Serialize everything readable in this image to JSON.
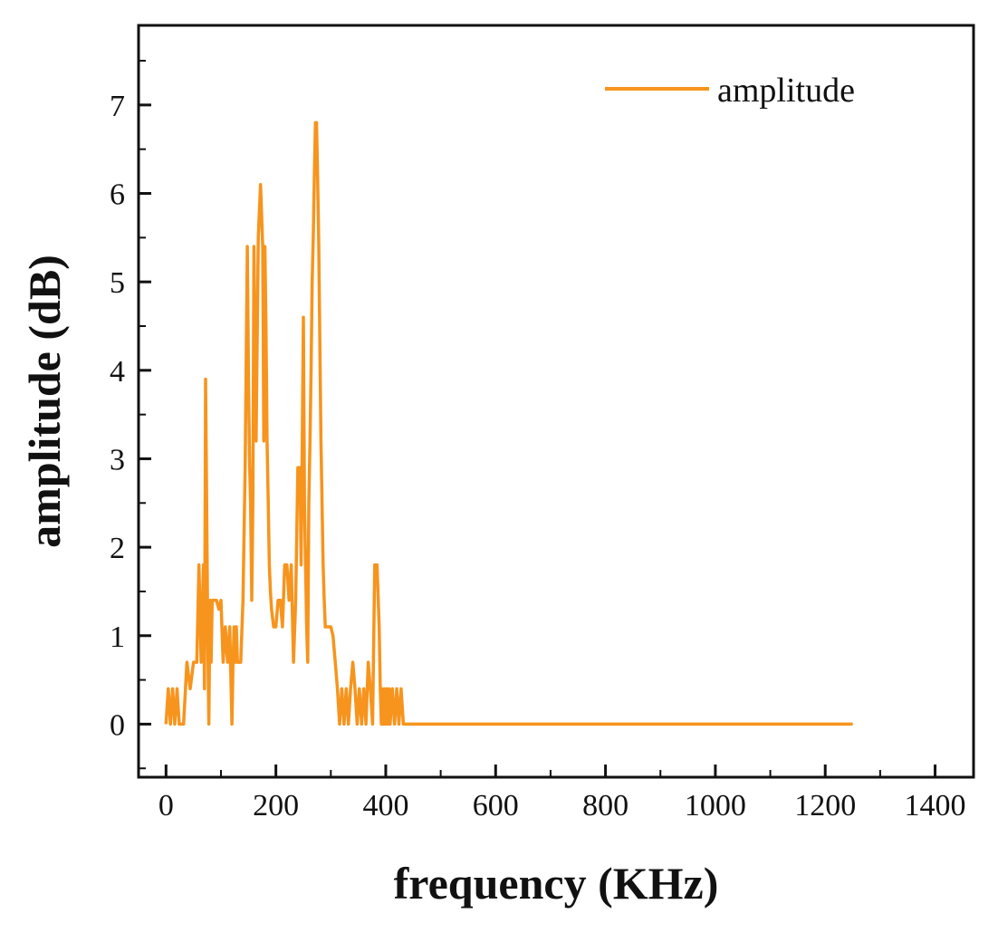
{
  "chart_data": {
    "type": "line",
    "title": "",
    "xlabel": "frequency (KHz)",
    "ylabel": "amplitude (dB)",
    "xlim": [
      -50,
      1470
    ],
    "ylim": [
      -0.6,
      7.9
    ],
    "xticks": [
      0,
      200,
      400,
      600,
      800,
      1000,
      1200,
      1400
    ],
    "xtick_labels": [
      "0",
      "200",
      "400",
      "600",
      "800",
      "1000",
      "1200",
      "1400"
    ],
    "yticks": [
      0,
      1,
      2,
      3,
      4,
      5,
      6,
      7
    ],
    "ytick_labels": [
      "0",
      "1",
      "2",
      "3",
      "4",
      "5",
      "6",
      "7"
    ],
    "grid": false,
    "legend_position": "top-right",
    "series": [
      {
        "name": "amplitude",
        "color": "#f7941d",
        "x": [
          0,
          4,
          8,
          12,
          16,
          20,
          24,
          28,
          32,
          38,
          44,
          50,
          56,
          60,
          64,
          68,
          70,
          72,
          74,
          76,
          78,
          80,
          82,
          84,
          88,
          92,
          96,
          100,
          104,
          108,
          112,
          116,
          120,
          122,
          124,
          126,
          128,
          130,
          132,
          136,
          140,
          144,
          148,
          150,
          152,
          154,
          156,
          158,
          160,
          164,
          168,
          172,
          176,
          178,
          180,
          182,
          184,
          186,
          188,
          190,
          192,
          196,
          200,
          204,
          208,
          212,
          216,
          220,
          224,
          228,
          232,
          236,
          240,
          244,
          246,
          248,
          250,
          252,
          254,
          256,
          258,
          260,
          262,
          264,
          266,
          268,
          270,
          272,
          274,
          276,
          278,
          280,
          282,
          284,
          286,
          288,
          290,
          292,
          294,
          296,
          300,
          304,
          308,
          312,
          316,
          320,
          324,
          328,
          332,
          336,
          340,
          344,
          348,
          352,
          356,
          360,
          364,
          368,
          372,
          376,
          380,
          384,
          388,
          390,
          392,
          394,
          396,
          398,
          400,
          402,
          404,
          406,
          408,
          412,
          416,
          420,
          424,
          428,
          432,
          436,
          440,
          444,
          448,
          452,
          456,
          460,
          1250
        ],
        "values": [
          0,
          0.4,
          0,
          0.4,
          0,
          0.4,
          0,
          0,
          0,
          0.7,
          0.4,
          0.7,
          0.7,
          1.8,
          0.7,
          1.8,
          0.4,
          3.9,
          2.5,
          1.0,
          0,
          1.4,
          0.7,
          1.4,
          1.4,
          1.4,
          1.3,
          1.4,
          0.7,
          1.1,
          0.7,
          1.1,
          0,
          0.7,
          1.1,
          0.7,
          1.1,
          0.7,
          0.7,
          0.7,
          1.4,
          2.9,
          5.4,
          4.0,
          3.0,
          2.5,
          1.4,
          2.5,
          5.4,
          3.2,
          5.5,
          6.1,
          5.4,
          3.2,
          5.4,
          4.5,
          3.2,
          2.5,
          1.8,
          1.5,
          1.3,
          1.1,
          1.1,
          1.4,
          1.4,
          1.1,
          1.8,
          1.8,
          1.4,
          1.8,
          0.7,
          1.4,
          2.9,
          2.9,
          1.8,
          3.2,
          4.6,
          2.5,
          1.8,
          1.1,
          0.7,
          2.5,
          3.2,
          4.0,
          5.0,
          5.5,
          6.2,
          6.8,
          6.8,
          6.2,
          5.4,
          4.3,
          3.2,
          2.5,
          1.8,
          1.4,
          1.1,
          1.1,
          1.1,
          1.1,
          1.1,
          1.0,
          0.7,
          0.4,
          0,
          0.4,
          0,
          0.4,
          0,
          0.4,
          0.7,
          0.4,
          0,
          0.4,
          0,
          0.4,
          0,
          0.7,
          0.4,
          0,
          1.8,
          1.8,
          1.1,
          0.4,
          0,
          0.4,
          0,
          0.4,
          0,
          0.4,
          0,
          0.4,
          0,
          0.4,
          0,
          0.4,
          0,
          0.4,
          0,
          0,
          0,
          0,
          0,
          0,
          0,
          0,
          0
        ]
      }
    ]
  }
}
